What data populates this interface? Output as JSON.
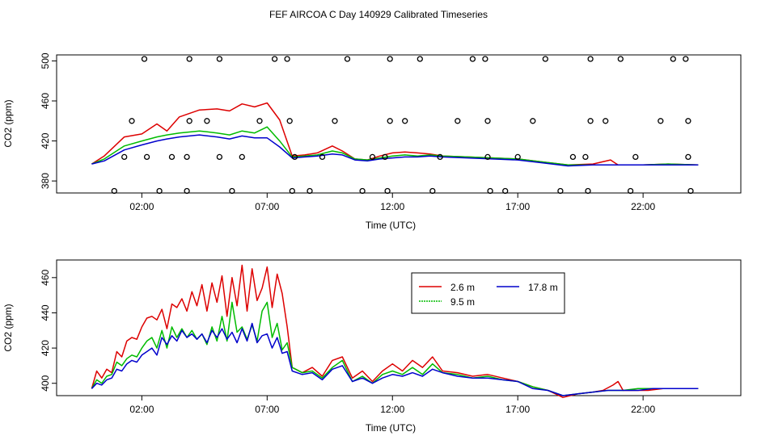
{
  "title": "FEF AIRCOA C  Day 140929  Calibrated Timeseries",
  "colors": {
    "red": "#dd0000",
    "green": "#00bb00",
    "blue": "#0000cc"
  },
  "chart_data": [
    {
      "type": "line",
      "xlabel": "Time (UTC)",
      "ylabel": "CO2 (ppm)",
      "xlim": [
        -1.4,
        25.9
      ],
      "ylim": [
        368,
        506
      ],
      "xticks": [
        2,
        7,
        12,
        17,
        22
      ],
      "xtick_labels": [
        "02:00",
        "07:00",
        "12:00",
        "17:00",
        "22:00"
      ],
      "yticks": [
        380,
        420,
        460,
        500
      ],
      "grid": false,
      "series": [
        {
          "color": "#dd0000",
          "x": [
            0,
            0.5,
            1.3,
            2,
            2.6,
            3,
            3.5,
            4.3,
            5,
            5.5,
            6,
            6.5,
            7,
            7.5,
            8,
            8.5,
            9,
            9.6,
            10,
            10.5,
            11,
            11.5,
            12,
            12.5,
            13,
            13.5,
            14,
            15,
            16,
            17,
            18,
            19,
            20,
            20.7,
            21,
            22,
            23,
            24.2
          ],
          "y": [
            397,
            405,
            424,
            427,
            437,
            430,
            444,
            451,
            452,
            450,
            457,
            454,
            458,
            441,
            405,
            406,
            408,
            415,
            410,
            402,
            401,
            405,
            408,
            409,
            408,
            407,
            405,
            404,
            403,
            402,
            399,
            396,
            397,
            401,
            396,
            396,
            397,
            396
          ]
        },
        {
          "color": "#00bb00",
          "x": [
            0,
            0.5,
            1.3,
            2,
            2.6,
            3,
            3.5,
            4.3,
            5,
            5.5,
            6,
            6.5,
            7,
            7.5,
            8,
            8.5,
            9,
            9.6,
            10,
            10.5,
            11,
            11.5,
            12,
            12.5,
            13,
            13.5,
            14,
            15,
            16,
            17,
            18,
            19,
            20,
            21,
            22,
            23,
            24.2
          ],
          "y": [
            397,
            402,
            415,
            420,
            424,
            426,
            428,
            430,
            428,
            426,
            430,
            428,
            434,
            420,
            404,
            405,
            406,
            410,
            408,
            402,
            401,
            403,
            405,
            406,
            405,
            406,
            405,
            404,
            403,
            402,
            399,
            396,
            396,
            396,
            396,
            397,
            396
          ]
        },
        {
          "color": "#0000cc",
          "x": [
            0,
            0.5,
            1.3,
            2,
            2.6,
            3,
            3.5,
            4.3,
            5,
            5.5,
            6,
            6.5,
            7,
            7.5,
            8,
            8.5,
            9,
            9.6,
            10,
            10.5,
            11,
            11.5,
            12,
            12.5,
            13,
            13.5,
            14,
            15,
            16,
            17,
            18,
            19,
            20,
            21,
            22,
            23,
            24.2
          ],
          "y": [
            397,
            400,
            411,
            416,
            420,
            422,
            424,
            426,
            424,
            422,
            425,
            423,
            423,
            414,
            403,
            404,
            405,
            407,
            406,
            401,
            400,
            402,
            403,
            404,
            404,
            405,
            404,
            403,
            402,
            401,
            398,
            395,
            396,
            396,
            396,
            396,
            396
          ]
        }
      ],
      "markers": {
        "shape": "open-circle",
        "x": [
          2.1,
          3.9,
          5.1,
          7.3,
          7.8,
          10.2,
          11.9,
          13.1,
          15.2,
          15.7,
          18.1,
          19.9,
          21.1,
          23.2,
          23.7,
          1.6,
          3.9,
          4.6,
          6.7,
          7.9,
          9.7,
          11.9,
          12.5,
          14.6,
          15.8,
          17.6,
          19.9,
          20.5,
          22.7,
          23.8,
          1.3,
          2.2,
          3.2,
          3.8,
          5.1,
          6.0,
          8.1,
          9.2,
          11.2,
          11.7,
          13.9,
          15.8,
          17.0,
          19.2,
          19.7,
          21.7,
          23.8,
          0.9,
          2.7,
          3.8,
          5.6,
          8.0,
          8.7,
          10.8,
          11.8,
          13.6,
          15.9,
          16.5,
          18.7,
          19.8,
          21.5,
          23.9
        ],
        "y": [
          502,
          502,
          502,
          502,
          502,
          502,
          502,
          502,
          502,
          502,
          502,
          502,
          502,
          502,
          502,
          440,
          440,
          440,
          440,
          440,
          440,
          440,
          440,
          440,
          440,
          440,
          440,
          440,
          440,
          440,
          404,
          404,
          404,
          404,
          404,
          404,
          404,
          404,
          404,
          404,
          404,
          404,
          404,
          404,
          404,
          404,
          404,
          370,
          370,
          370,
          370,
          370,
          370,
          370,
          370,
          370,
          370,
          370,
          370,
          370,
          370,
          370
        ]
      }
    },
    {
      "type": "line",
      "xlabel": "Time (UTC)",
      "ylabel": "CO2 (ppm)",
      "xlim": [
        -1.4,
        25.9
      ],
      "ylim": [
        393,
        470
      ],
      "xticks": [
        2,
        7,
        12,
        17,
        22
      ],
      "xtick_labels": [
        "02:00",
        "07:00",
        "12:00",
        "17:00",
        "22:00"
      ],
      "yticks": [
        400,
        420,
        440,
        460
      ],
      "grid": false,
      "legend_position": "top-right",
      "series": [
        {
          "name": "2.6 m",
          "color": "#dd0000",
          "x": [
            0,
            0.2,
            0.4,
            0.6,
            0.8,
            1,
            1.2,
            1.4,
            1.6,
            1.8,
            2,
            2.2,
            2.4,
            2.6,
            2.8,
            3,
            3.2,
            3.4,
            3.6,
            3.8,
            4,
            4.2,
            4.4,
            4.6,
            4.8,
            5,
            5.2,
            5.4,
            5.6,
            5.8,
            6,
            6.2,
            6.4,
            6.6,
            6.8,
            7,
            7.2,
            7.4,
            7.6,
            7.8,
            8,
            8.4,
            8.8,
            9.2,
            9.6,
            10,
            10.4,
            10.8,
            11.2,
            11.6,
            12,
            12.4,
            12.8,
            13.2,
            13.6,
            14,
            14.6,
            15.2,
            15.8,
            16.4,
            17,
            17.6,
            18.2,
            18.8,
            19.4,
            20,
            20.4,
            20.8,
            21,
            21.2,
            21.6,
            22.2,
            22.8,
            23.4,
            24.2
          ],
          "y": [
            397,
            407,
            403,
            408,
            406,
            418,
            415,
            424,
            426,
            425,
            432,
            437,
            438,
            436,
            442,
            431,
            445,
            443,
            448,
            441,
            452,
            444,
            456,
            441,
            457,
            446,
            461,
            438,
            460,
            444,
            467,
            441,
            465,
            447,
            454,
            466,
            443,
            462,
            451,
            432,
            409,
            406,
            409,
            404,
            413,
            415,
            403,
            407,
            401,
            407,
            411,
            407,
            413,
            409,
            415,
            407,
            406,
            404,
            405,
            403,
            401,
            398,
            396,
            392,
            394,
            395,
            396,
            399,
            401,
            396,
            396,
            396,
            397,
            397,
            397
          ]
        },
        {
          "name": "9.5 m",
          "color": "#00bb00",
          "x": [
            0,
            0.2,
            0.4,
            0.6,
            0.8,
            1,
            1.2,
            1.4,
            1.6,
            1.8,
            2,
            2.2,
            2.4,
            2.6,
            2.8,
            3,
            3.2,
            3.4,
            3.6,
            3.8,
            4,
            4.2,
            4.4,
            4.6,
            4.8,
            5,
            5.2,
            5.4,
            5.6,
            5.8,
            6,
            6.2,
            6.4,
            6.6,
            6.8,
            7,
            7.2,
            7.4,
            7.6,
            7.8,
            8,
            8.4,
            8.8,
            9.2,
            9.6,
            10,
            10.4,
            10.8,
            11.2,
            11.6,
            12,
            12.4,
            12.8,
            13.2,
            13.6,
            14,
            14.6,
            15.2,
            15.8,
            16.4,
            17,
            17.6,
            18.2,
            18.8,
            19.4,
            20,
            20.6,
            21.2,
            21.8,
            22.4,
            23,
            23.6,
            24.2
          ],
          "y": [
            397,
            402,
            400,
            404,
            405,
            412,
            410,
            414,
            416,
            415,
            420,
            424,
            426,
            420,
            430,
            420,
            432,
            426,
            431,
            426,
            430,
            425,
            428,
            422,
            432,
            424,
            438,
            424,
            446,
            429,
            432,
            425,
            433,
            424,
            441,
            446,
            426,
            434,
            419,
            423,
            409,
            406,
            407,
            403,
            409,
            413,
            401,
            404,
            400,
            405,
            407,
            405,
            409,
            405,
            411,
            406,
            405,
            403,
            404,
            402,
            401,
            398,
            396,
            393,
            394,
            395,
            396,
            396,
            397,
            397,
            397,
            397,
            397
          ]
        },
        {
          "name": "17.8 m",
          "color": "#0000cc",
          "x": [
            0,
            0.2,
            0.4,
            0.6,
            0.8,
            1,
            1.2,
            1.4,
            1.6,
            1.8,
            2,
            2.2,
            2.4,
            2.6,
            2.8,
            3,
            3.2,
            3.4,
            3.6,
            3.8,
            4,
            4.2,
            4.4,
            4.6,
            4.8,
            5,
            5.2,
            5.4,
            5.6,
            5.8,
            6,
            6.2,
            6.4,
            6.6,
            6.8,
            7,
            7.2,
            7.4,
            7.6,
            7.8,
            8,
            8.4,
            8.8,
            9.2,
            9.6,
            10,
            10.4,
            10.8,
            11.2,
            11.6,
            12,
            12.4,
            12.8,
            13.2,
            13.6,
            14,
            14.6,
            15.2,
            15.8,
            16.4,
            17,
            17.6,
            18.2,
            18.8,
            19.4,
            20,
            20.6,
            21.2,
            21.8,
            22.4,
            23,
            23.6,
            24.2
          ],
          "y": [
            397,
            400,
            399,
            402,
            403,
            408,
            407,
            411,
            413,
            412,
            416,
            418,
            420,
            416,
            426,
            422,
            427,
            424,
            430,
            426,
            428,
            425,
            428,
            423,
            430,
            426,
            431,
            425,
            429,
            423,
            431,
            424,
            434,
            423,
            427,
            428,
            420,
            426,
            417,
            418,
            407,
            405,
            406,
            402,
            408,
            410,
            401,
            403,
            400,
            403,
            405,
            404,
            406,
            404,
            408,
            406,
            404,
            403,
            403,
            402,
            401,
            397,
            396,
            393,
            394,
            395,
            396,
            396,
            396,
            397,
            397,
            397,
            397
          ]
        }
      ]
    }
  ]
}
